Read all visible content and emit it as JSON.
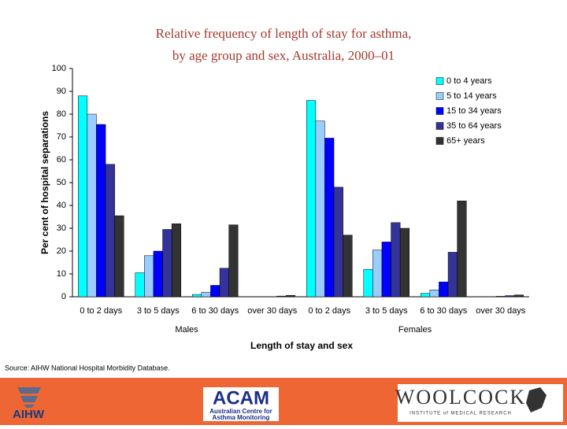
{
  "chart_data": {
    "type": "bar",
    "title": [
      "Relative frequency of length of stay for asthma,",
      "by age group and sex, Australia, 2000–01"
    ],
    "categories": [
      "0 to 2 days",
      "3 to 5 days",
      "6 to 30 days",
      "over 30 days",
      "0 to 2 days",
      "3 to 5 days",
      "6 to 30 days",
      "over 30 days"
    ],
    "groups": [
      "Males",
      "Females"
    ],
    "x_label": "Length of stay and sex",
    "y_label": "Per cent of hospital separations",
    "ylim": [
      0,
      100
    ],
    "yticks": [
      0,
      10,
      20,
      30,
      40,
      50,
      60,
      70,
      80,
      90,
      100
    ],
    "legend": "upper right",
    "series": [
      {
        "name": "0 to 4 years",
        "color": "#00ffff",
        "values": [
          88,
          10.5,
          1,
          0,
          86,
          12,
          1.5,
          0
        ]
      },
      {
        "name": "5 to 14 years",
        "color": "#99ccff",
        "values": [
          80,
          18,
          2,
          0,
          77,
          20.5,
          3,
          0
        ]
      },
      {
        "name": "15 to 34 years",
        "color": "#0000ff",
        "values": [
          75.5,
          20,
          5,
          0,
          69.5,
          24,
          6.5,
          0.2
        ]
      },
      {
        "name": "35 to 64 years",
        "color": "#333399",
        "values": [
          58,
          29.5,
          12.5,
          0.3,
          48,
          32.5,
          19.5,
          0.5
        ]
      },
      {
        "name": "65+ years",
        "color": "#333333",
        "values": [
          35.5,
          32,
          31.5,
          0.6,
          27,
          30,
          42,
          0.8
        ]
      }
    ],
    "source": "Source: AIHW National Hospital Morbidity Database."
  },
  "footer": {
    "aihw": "AIHW",
    "acam": "ACAM",
    "acam_sub": [
      "Australian Centre for",
      "Asthma Monitoring"
    ],
    "woolcock": "WOOLCOCK",
    "woolcock_sub": "INSTITUTE of MEDICAL RESEARCH"
  }
}
